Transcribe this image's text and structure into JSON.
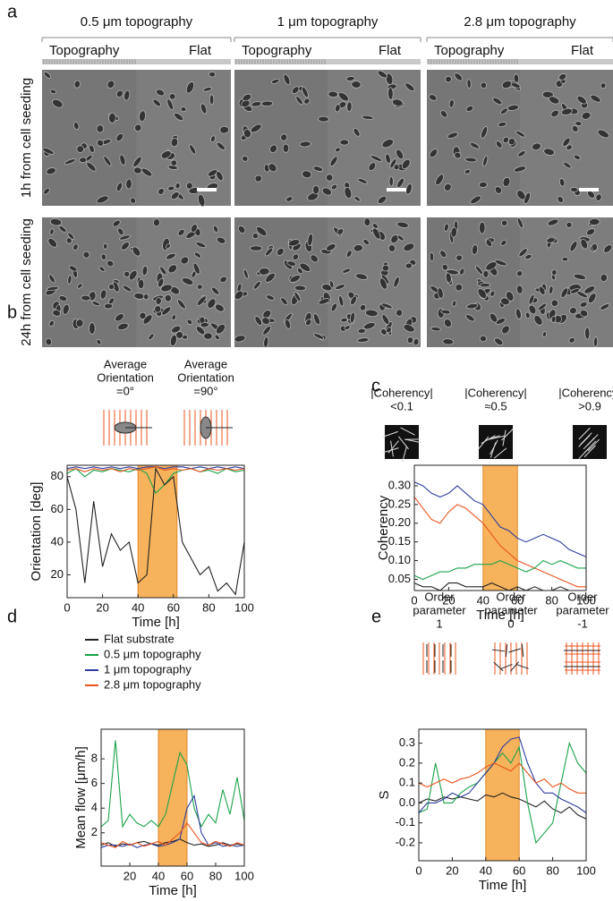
{
  "panel_a": {
    "panel": "a",
    "columns": [
      "0.5 μm topography",
      "1 μm topography",
      "2.8 μm topography"
    ],
    "rows": [
      "1h from cell seeding",
      "24h from cell seeding"
    ],
    "strip_labels": [
      "Topography",
      "Flat"
    ]
  },
  "chart_data": [
    {
      "type": "line",
      "panel": "b",
      "icon_labels": [
        [
          "Average",
          "Orientation",
          "=0°"
        ],
        [
          "Average",
          "Orientation",
          "=90°"
        ]
      ],
      "x_label": "Time [h]",
      "y_label": "Orientation [deg]",
      "shade": {
        "from": 40,
        "to": 62,
        "color": "#f7b35b"
      },
      "x": [
        0,
        5,
        10,
        15,
        20,
        25,
        30,
        35,
        40,
        45,
        50,
        55,
        60,
        65,
        70,
        75,
        80,
        85,
        90,
        95,
        100
      ],
      "xlim": [
        0,
        100
      ],
      "xticks": [
        0,
        20,
        40,
        60,
        80,
        100
      ],
      "ylim": [
        6,
        87
      ],
      "yticks": [
        20,
        40,
        60,
        80
      ],
      "series": [
        {
          "color": "#1aa34a",
          "values": [
            82,
            85,
            80,
            84,
            83,
            85,
            84,
            83,
            85,
            82,
            70,
            75,
            82,
            84,
            85,
            83,
            84,
            82,
            85,
            83,
            84
          ]
        },
        {
          "color": "#2f3e9e",
          "values": [
            85,
            86,
            85,
            86,
            85,
            86,
            85,
            86,
            85,
            86,
            86,
            85,
            86,
            86,
            85,
            86,
            85,
            86,
            85,
            86,
            85
          ]
        },
        {
          "color": "#e8541e",
          "values": [
            84,
            85,
            83,
            85,
            84,
            85,
            83,
            85,
            84,
            85,
            86,
            84,
            85,
            84,
            85,
            83,
            85,
            84,
            85,
            84,
            85
          ]
        },
        {
          "color": "#222222",
          "values": [
            80,
            60,
            15,
            65,
            25,
            45,
            35,
            40,
            15,
            20,
            85,
            75,
            80,
            40,
            30,
            20,
            25,
            10,
            15,
            8,
            40
          ]
        }
      ]
    },
    {
      "type": "line",
      "panel": "c",
      "icon_labels": [
        [
          "|Coherency|",
          "<0.1"
        ],
        [
          "|Coherency|",
          "≈0.5"
        ],
        [
          "|Coherency|",
          ">0.9"
        ]
      ],
      "x_label": "Time [h]",
      "y_label": "Coherency",
      "shade": {
        "from": 40,
        "to": 60,
        "color": "#f7b35b"
      },
      "x": [
        0,
        5,
        10,
        15,
        20,
        25,
        30,
        35,
        40,
        45,
        50,
        55,
        60,
        65,
        70,
        75,
        80,
        85,
        90,
        95,
        100
      ],
      "xlim": [
        0,
        100
      ],
      "xticks": [
        0,
        20,
        40,
        60,
        80,
        100
      ],
      "ylim": [
        0.02,
        0.355
      ],
      "yticks": [
        0.05,
        {
          "value": 0.1,
          "label": "0.10"
        },
        0.15,
        {
          "value": 0.2,
          "label": "0.20"
        },
        0.25,
        {
          "value": 0.3,
          "label": "0.30"
        }
      ],
      "series": [
        {
          "color": "#2f3e9e",
          "values": [
            0.31,
            0.3,
            0.28,
            0.27,
            0.28,
            0.3,
            0.28,
            0.26,
            0.25,
            0.22,
            0.19,
            0.18,
            0.16,
            0.15,
            0.16,
            0.17,
            0.16,
            0.15,
            0.13,
            0.12,
            0.11
          ]
        },
        {
          "color": "#e8541e",
          "values": [
            0.27,
            0.24,
            0.21,
            0.2,
            0.23,
            0.25,
            0.24,
            0.22,
            0.2,
            0.17,
            0.14,
            0.12,
            0.1,
            0.09,
            0.08,
            0.07,
            0.06,
            0.05,
            0.04,
            0.03,
            0.03
          ]
        },
        {
          "color": "#1aa34a",
          "values": [
            0.06,
            0.05,
            0.06,
            0.07,
            0.07,
            0.08,
            0.08,
            0.09,
            0.09,
            0.09,
            0.1,
            0.09,
            0.08,
            0.07,
            0.08,
            0.1,
            0.09,
            0.1,
            0.09,
            0.08,
            0.08
          ]
        },
        {
          "color": "#222222",
          "values": [
            0.04,
            0.03,
            0.03,
            0.02,
            0.04,
            0.04,
            0.03,
            0.03,
            0.03,
            0.04,
            0.03,
            0.02,
            0.03,
            0.02,
            0.03,
            0.02,
            0.02,
            0.03,
            0.02,
            0.02,
            0.02
          ]
        }
      ]
    },
    {
      "type": "line",
      "panel": "d",
      "x_label": "Time [h]",
      "y_label": "Mean flow [μm/h]",
      "shade": {
        "from": 40,
        "to": 60,
        "color": "#f7b35b"
      },
      "x": [
        0,
        5,
        10,
        15,
        20,
        25,
        30,
        35,
        40,
        45,
        50,
        55,
        60,
        65,
        70,
        75,
        80,
        85,
        90,
        95,
        100
      ],
      "xlim": [
        0,
        100
      ],
      "xticks": [
        20,
        40,
        60,
        80,
        100
      ],
      "ylim": [
        -0.7,
        10.4
      ],
      "yticks": [
        2,
        4,
        6,
        8
      ],
      "series": [
        {
          "name": "Flat substrate",
          "color": "#222222",
          "values": [
            1,
            1.2,
            0.9,
            1.1,
            1,
            1.2,
            1.3,
            1.1,
            1,
            1.2,
            1.3,
            1.5,
            1.2,
            1,
            1.1,
            0.9,
            1,
            1.2,
            1,
            1.1,
            1
          ]
        },
        {
          "name": "0.5 μm topography",
          "color": "#1aa34a",
          "values": [
            2.5,
            3,
            9.5,
            2.5,
            3.5,
            2.8,
            2.5,
            3,
            2.5,
            3.5,
            6,
            8.5,
            7.5,
            4,
            2.5,
            3.5,
            2.8,
            5.5,
            3.5,
            6.5,
            3
          ]
        },
        {
          "name": "1 μm topography",
          "color": "#2f3e9e",
          "values": [
            0.8,
            1,
            1,
            0.9,
            1.1,
            0.8,
            1,
            1.1,
            0.9,
            1,
            1.2,
            1.5,
            4,
            5,
            2,
            1,
            1.2,
            0.9,
            1,
            0.9,
            1
          ]
        },
        {
          "name": "2.8 μm topography",
          "color": "#e8541e",
          "values": [
            1.2,
            1,
            0.8,
            1.3,
            1,
            1.2,
            0.9,
            1.1,
            1.3,
            1,
            1.5,
            2,
            2.8,
            2,
            1.2,
            1,
            1.3,
            1.1,
            0.9,
            1.2,
            1
          ]
        }
      ]
    },
    {
      "type": "line",
      "panel": "e",
      "icon_labels": [
        [
          "Order",
          "parameter",
          "1"
        ],
        [
          "Order",
          "parameter",
          "0"
        ],
        [
          "Order",
          "parameter",
          "-1"
        ]
      ],
      "x_label": "Time [h]",
      "y_label": "S",
      "shade": {
        "from": 40,
        "to": 60,
        "color": "#f7b35b"
      },
      "x": [
        0,
        5,
        10,
        15,
        20,
        25,
        30,
        35,
        40,
        45,
        50,
        55,
        60,
        65,
        70,
        75,
        80,
        85,
        90,
        95,
        100
      ],
      "xlim": [
        0,
        100
      ],
      "xticks": [
        0,
        20,
        40,
        60,
        80,
        100
      ],
      "ylim": [
        -0.29,
        0.37
      ],
      "yticks": [
        -0.2,
        -0.1,
        {
          "value": 0,
          "label": "0.0"
        },
        0.1,
        0.2,
        0.3
      ],
      "series": [
        {
          "color": "#222222",
          "values": [
            0,
            0.02,
            0.01,
            0.03,
            0.02,
            0.03,
            0.02,
            0.01,
            0.04,
            0.03,
            0.05,
            0.03,
            0.02,
            0,
            -0.02,
            0.01,
            -0.03,
            -0.05,
            -0.02,
            -0.06,
            -0.08
          ]
        },
        {
          "color": "#1aa34a",
          "values": [
            -0.05,
            -0.03,
            0.2,
            0,
            0,
            0.05,
            0.08,
            0.1,
            0.15,
            0.2,
            0.25,
            0.2,
            0.28,
            0,
            -0.2,
            -0.15,
            -0.1,
            0.1,
            0.3,
            0.2,
            0.15
          ]
        },
        {
          "color": "#2f3e9e",
          "values": [
            -0.05,
            0,
            0,
            0.02,
            0.05,
            0.03,
            0.05,
            0.1,
            0.15,
            0.2,
            0.28,
            0.32,
            0.33,
            0.2,
            0.1,
            0.05,
            0.05,
            0.02,
            0,
            -0.02,
            -0.05
          ]
        },
        {
          "color": "#e8541e",
          "values": [
            0.1,
            0.08,
            0.1,
            0.12,
            0.1,
            0.12,
            0.13,
            0.15,
            0.18,
            0.2,
            0.18,
            0.16,
            0.2,
            0.15,
            0.1,
            0.12,
            0.08,
            0.1,
            0.07,
            0.05,
            0.05
          ]
        }
      ]
    }
  ]
}
